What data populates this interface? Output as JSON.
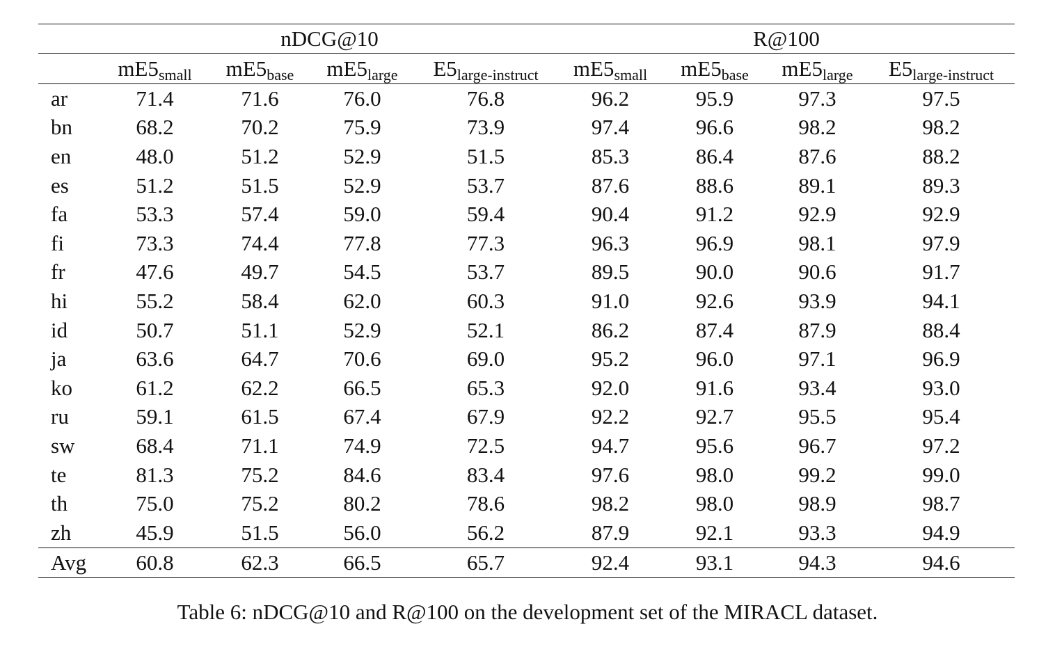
{
  "table": {
    "groups": [
      "nDCG@10",
      "R@100"
    ],
    "columns": [
      {
        "base": "mE5",
        "sub": "small"
      },
      {
        "base": "mE5",
        "sub": "base"
      },
      {
        "base": "mE5",
        "sub": "large"
      },
      {
        "base": "E5",
        "sub": "large-instruct"
      },
      {
        "base": "mE5",
        "sub": "small"
      },
      {
        "base": "mE5",
        "sub": "base"
      },
      {
        "base": "mE5",
        "sub": "large"
      },
      {
        "base": "E5",
        "sub": "large-instruct"
      }
    ],
    "rows": [
      {
        "lang": "ar",
        "values": [
          "71.4",
          "71.6",
          "76.0",
          "76.8",
          "96.2",
          "95.9",
          "97.3",
          "97.5"
        ]
      },
      {
        "lang": "bn",
        "values": [
          "68.2",
          "70.2",
          "75.9",
          "73.9",
          "97.4",
          "96.6",
          "98.2",
          "98.2"
        ]
      },
      {
        "lang": "en",
        "values": [
          "48.0",
          "51.2",
          "52.9",
          "51.5",
          "85.3",
          "86.4",
          "87.6",
          "88.2"
        ]
      },
      {
        "lang": "es",
        "values": [
          "51.2",
          "51.5",
          "52.9",
          "53.7",
          "87.6",
          "88.6",
          "89.1",
          "89.3"
        ]
      },
      {
        "lang": "fa",
        "values": [
          "53.3",
          "57.4",
          "59.0",
          "59.4",
          "90.4",
          "91.2",
          "92.9",
          "92.9"
        ]
      },
      {
        "lang": "fi",
        "values": [
          "73.3",
          "74.4",
          "77.8",
          "77.3",
          "96.3",
          "96.9",
          "98.1",
          "97.9"
        ]
      },
      {
        "lang": "fr",
        "values": [
          "47.6",
          "49.7",
          "54.5",
          "53.7",
          "89.5",
          "90.0",
          "90.6",
          "91.7"
        ]
      },
      {
        "lang": "hi",
        "values": [
          "55.2",
          "58.4",
          "62.0",
          "60.3",
          "91.0",
          "92.6",
          "93.9",
          "94.1"
        ]
      },
      {
        "lang": "id",
        "values": [
          "50.7",
          "51.1",
          "52.9",
          "52.1",
          "86.2",
          "87.4",
          "87.9",
          "88.4"
        ]
      },
      {
        "lang": "ja",
        "values": [
          "63.6",
          "64.7",
          "70.6",
          "69.0",
          "95.2",
          "96.0",
          "97.1",
          "96.9"
        ]
      },
      {
        "lang": "ko",
        "values": [
          "61.2",
          "62.2",
          "66.5",
          "65.3",
          "92.0",
          "91.6",
          "93.4",
          "93.0"
        ]
      },
      {
        "lang": "ru",
        "values": [
          "59.1",
          "61.5",
          "67.4",
          "67.9",
          "92.2",
          "92.7",
          "95.5",
          "95.4"
        ]
      },
      {
        "lang": "sw",
        "values": [
          "68.4",
          "71.1",
          "74.9",
          "72.5",
          "94.7",
          "95.6",
          "96.7",
          "97.2"
        ]
      },
      {
        "lang": "te",
        "values": [
          "81.3",
          "75.2",
          "84.6",
          "83.4",
          "97.6",
          "98.0",
          "99.2",
          "99.0"
        ]
      },
      {
        "lang": "th",
        "values": [
          "75.0",
          "75.2",
          "80.2",
          "78.6",
          "98.2",
          "98.0",
          "98.9",
          "98.7"
        ]
      },
      {
        "lang": "zh",
        "values": [
          "45.9",
          "51.5",
          "56.0",
          "56.2",
          "87.9",
          "92.1",
          "93.3",
          "94.9"
        ]
      }
    ],
    "avg": {
      "lang": "Avg",
      "values": [
        "60.8",
        "62.3",
        "66.5",
        "65.7",
        "92.4",
        "93.1",
        "94.3",
        "94.6"
      ]
    }
  },
  "caption": "Table 6: nDCG@10 and R@100 on the development set of the MIRACL dataset."
}
